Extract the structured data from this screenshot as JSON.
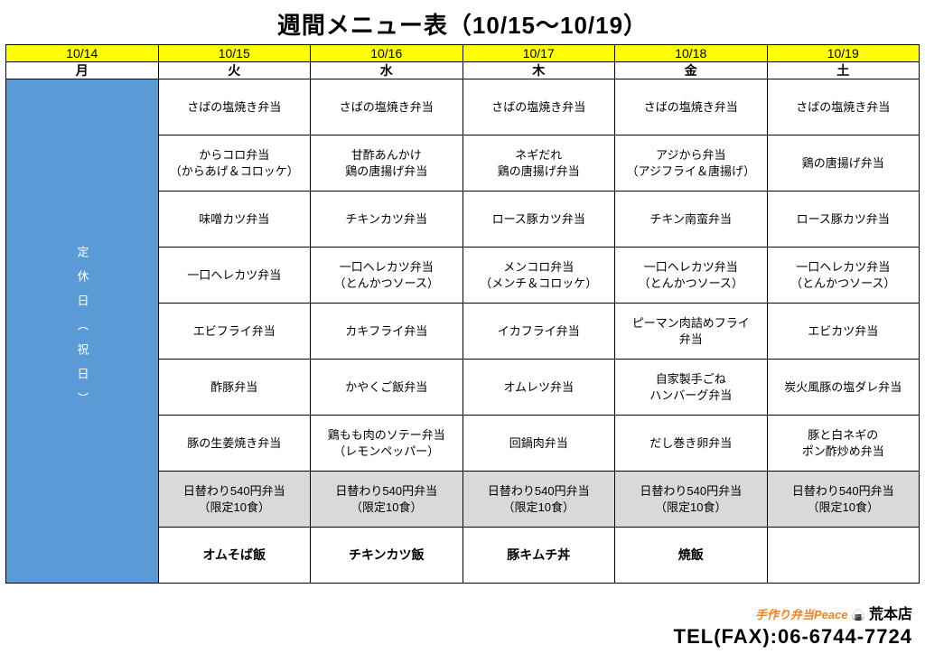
{
  "title": "週間メニュー表（10/15～10/19）",
  "colors": {
    "header_bg": "#ffff00",
    "closed_bg": "#5b9bd5",
    "closed_fg": "#ffffff",
    "special_bg": "#d9d9d9",
    "border": "#000000"
  },
  "dates": [
    "10/14",
    "10/15",
    "10/16",
    "10/17",
    "10/18",
    "10/19"
  ],
  "days": [
    "月",
    "火",
    "水",
    "木",
    "金",
    "土"
  ],
  "closed_label": "定休日（祝日）",
  "rows": [
    [
      "さばの塩焼き弁当",
      "さばの塩焼き弁当",
      "さばの塩焼き弁当",
      "さばの塩焼き弁当",
      "さばの塩焼き弁当"
    ],
    [
      "からコロ弁当\n（からあげ＆コロッケ）",
      "甘酢あんかけ\n鶏の唐揚げ弁当",
      "ネギだれ\n鶏の唐揚げ弁当",
      "アジから弁当\n（アジフライ＆唐揚げ）",
      "鶏の唐揚げ弁当"
    ],
    [
      "味噌カツ弁当",
      "チキンカツ弁当",
      "ロース豚カツ弁当",
      "チキン南蛮弁当",
      "ロース豚カツ弁当"
    ],
    [
      "一口ヘレカツ弁当",
      "一口ヘレカツ弁当\n（とんかつソース）",
      "メンコロ弁当\n（メンチ＆コロッケ）",
      "一口ヘレカツ弁当\n（とんかつソース）",
      "一口ヘレカツ弁当\n（とんかつソース）"
    ],
    [
      "エビフライ弁当",
      "カキフライ弁当",
      "イカフライ弁当",
      "ピーマン肉詰めフライ\n弁当",
      "エビカツ弁当"
    ],
    [
      "酢豚弁当",
      "かやくご飯弁当",
      "オムレツ弁当",
      "自家製手ごね\nハンバーグ弁当",
      "炭火風豚の塩ダレ弁当"
    ],
    [
      "豚の生姜焼き弁当",
      "鶏もも肉のソテー弁当\n（レモンペッパー）",
      "回鍋肉弁当",
      "だし巻き卵弁当",
      "豚と白ネギの\nポン酢炒め弁当"
    ],
    [
      "日替わり540円弁当\n（限定10食）",
      "日替わり540円弁当\n（限定10食）",
      "日替わり540円弁当\n（限定10食）",
      "日替わり540円弁当\n（限定10食）",
      "日替わり540円弁当\n（限定10食）"
    ],
    [
      "オムそば飯",
      "チキンカツ飯",
      "豚キムチ丼",
      "焼飯",
      ""
    ]
  ],
  "special_row_index": 7,
  "bold_row_index": 8,
  "footer": {
    "brand": "手作り弁当Peace",
    "store": "荒本店",
    "tel_label": "TEL(FAX):",
    "tel": "06-6744-7724"
  }
}
